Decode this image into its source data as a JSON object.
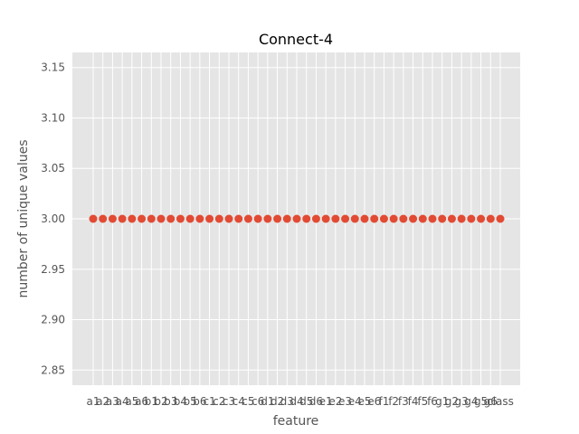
{
  "chart_data": {
    "type": "scatter",
    "title": "Connect-4",
    "xlabel": "feature",
    "ylabel": "number of unique values",
    "categories": [
      "a1",
      "a2",
      "a3",
      "a4",
      "a5",
      "a6",
      "b1",
      "b2",
      "b3",
      "b4",
      "b5",
      "b6",
      "c1",
      "c2",
      "c3",
      "c4",
      "c5",
      "c6",
      "d1",
      "d2",
      "d3",
      "d4",
      "d5",
      "d6",
      "e1",
      "e2",
      "e3",
      "e4",
      "e5",
      "e6",
      "f1",
      "f2",
      "f3",
      "f4",
      "f5",
      "f6",
      "g1",
      "g2",
      "g3",
      "g4",
      "g5",
      "g6",
      "class"
    ],
    "values": [
      3,
      3,
      3,
      3,
      3,
      3,
      3,
      3,
      3,
      3,
      3,
      3,
      3,
      3,
      3,
      3,
      3,
      3,
      3,
      3,
      3,
      3,
      3,
      3,
      3,
      3,
      3,
      3,
      3,
      3,
      3,
      3,
      3,
      3,
      3,
      3,
      3,
      3,
      3,
      3,
      3,
      3,
      3
    ],
    "ylim": [
      2.835,
      3.165
    ],
    "yticks": [
      "2.85",
      "2.90",
      "2.95",
      "3.00",
      "3.05",
      "3.10",
      "3.15"
    ],
    "grid": true,
    "colors": {
      "background": "#e5e5e5",
      "grid": "#ffffff",
      "marker": "#e24a33",
      "text": "#555555"
    }
  }
}
